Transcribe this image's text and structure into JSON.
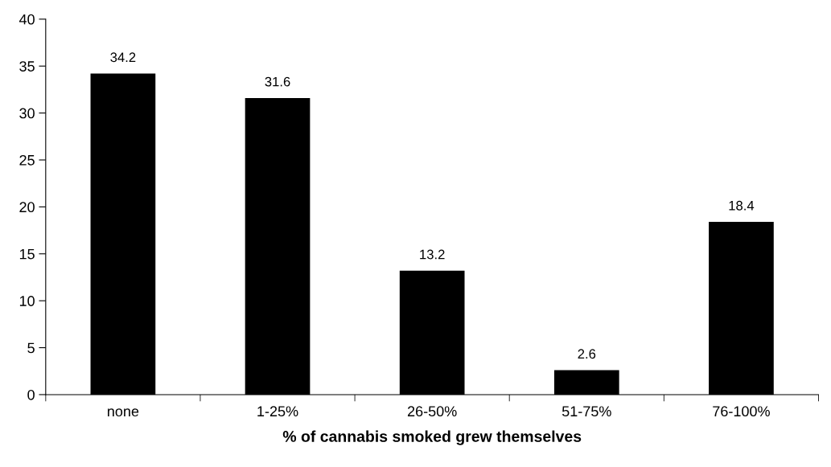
{
  "chart_data": {
    "type": "bar",
    "xlabel": "% of cannabis smoked grew themselves",
    "categories": [
      "none",
      "1-25%",
      "26-50%",
      "51-75%",
      "76-100%"
    ],
    "values": [
      34.2,
      31.6,
      13.2,
      2.6,
      18.4
    ],
    "color": "#000000",
    "ylim": [
      0,
      40
    ],
    "yticks": [
      0,
      5,
      10,
      15,
      20,
      25,
      30,
      35,
      40
    ],
    "grid": false,
    "data_labels": true
  }
}
